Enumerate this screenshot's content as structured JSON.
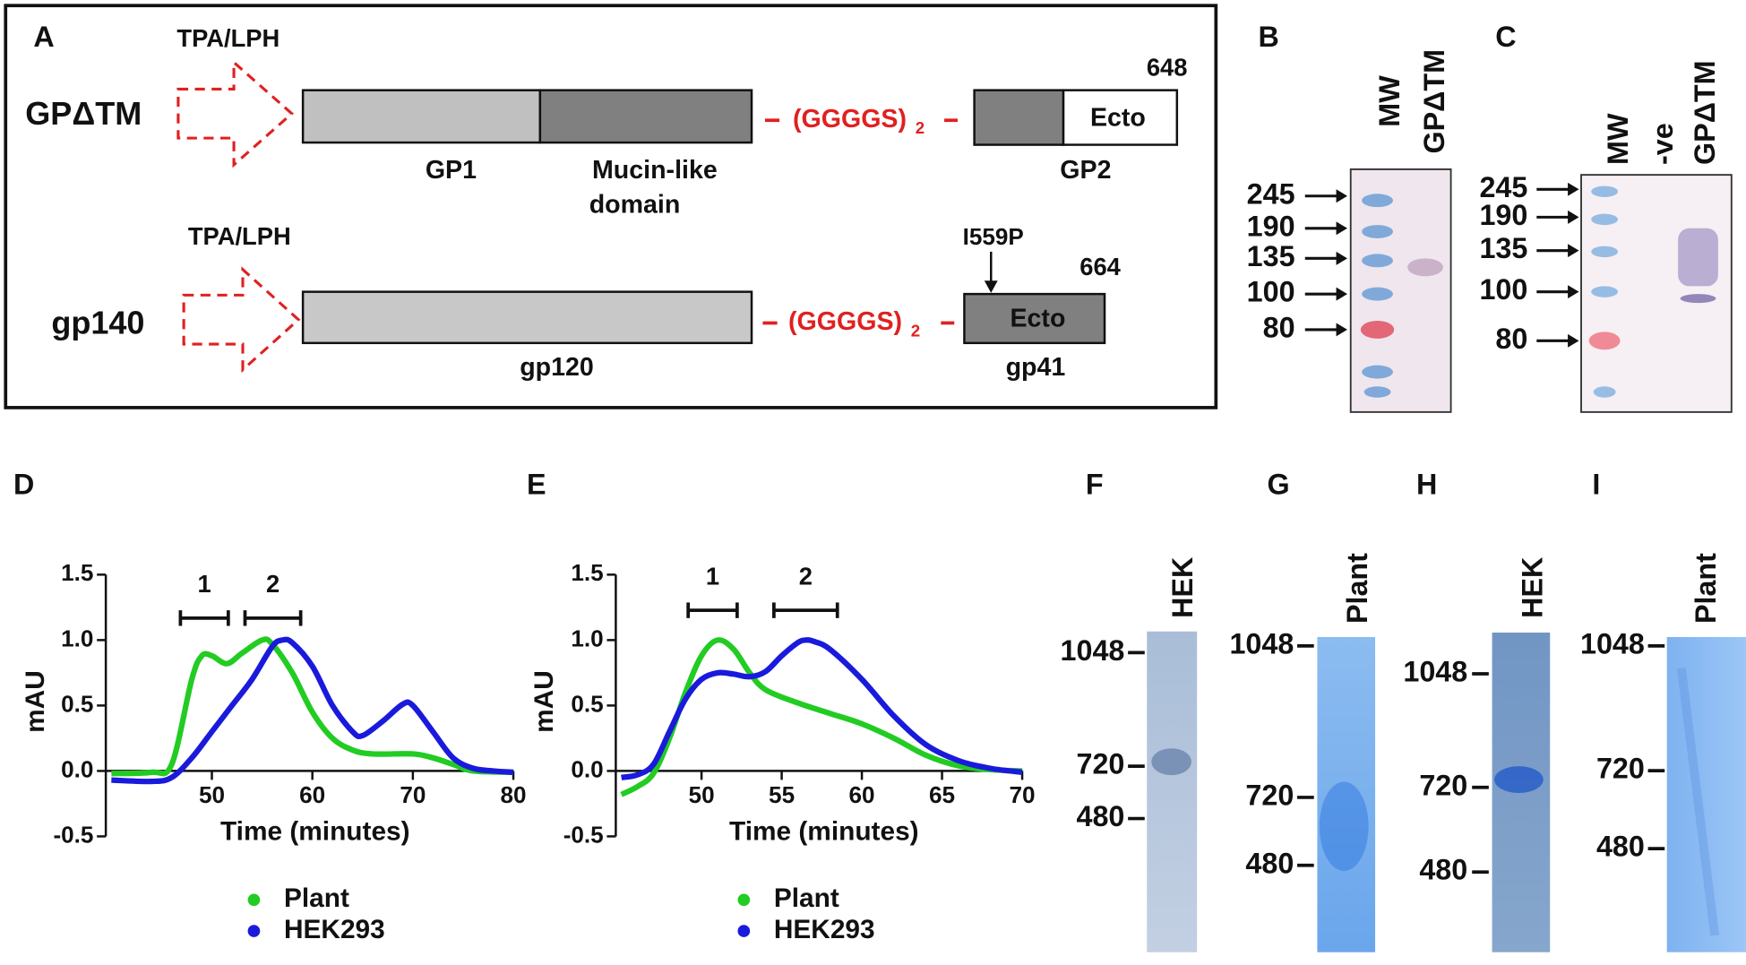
{
  "panel_labels": [
    "A",
    "B",
    "C",
    "D",
    "E",
    "F",
    "G",
    "H",
    "I"
  ],
  "schematic": {
    "gpdtm": {
      "label": "GPΔTM",
      "signal": "TPA/LPH",
      "length": 648,
      "linker": "(GGGGS)",
      "linker_sub": "2",
      "ecto": "Ecto",
      "labels": [
        "GP1",
        "Mucin-like",
        "domain",
        "GP2"
      ]
    },
    "gp140": {
      "label": "gp140",
      "signal": "TPA/LPH",
      "length": 664,
      "mutation": "I559P",
      "linker": "(GGGGS)",
      "linker_sub": "2",
      "ecto": "Ecto",
      "labels": [
        "gp120",
        "gp41"
      ]
    }
  },
  "blots": [
    {
      "lanes": [
        "MW",
        "GPΔTM"
      ],
      "markers": [
        245,
        190,
        135,
        100,
        80
      ]
    },
    {
      "lanes": [
        "MW",
        "-ve",
        "GPΔTM"
      ],
      "markers": [
        245,
        190,
        135,
        100,
        80
      ]
    }
  ],
  "native_gels": [
    {
      "lane": "HEK",
      "markers": [
        1048,
        720,
        480
      ]
    },
    {
      "lane": "Plant",
      "markers": [
        1048,
        720,
        480
      ]
    },
    {
      "lane": "HEK",
      "markers": [
        1048,
        720,
        480
      ]
    },
    {
      "lane": "Plant",
      "markers": [
        1048,
        720,
        480
      ]
    }
  ],
  "chart_data": [
    {
      "type": "line",
      "x_label": "Time (minutes)",
      "y_label": "mAU",
      "annotations": [
        "1",
        "2"
      ],
      "xlim": [
        40,
        80
      ],
      "xticks": [
        50,
        60,
        70,
        80
      ],
      "ylim": [
        -0.5,
        1.5
      ],
      "yticks": [
        -0.5,
        {
          "value": 0,
          "label": "0.0"
        },
        0.5,
        {
          "value": 1,
          "label": "1.0"
        },
        1.5
      ],
      "series": [
        {
          "name": "Plant",
          "color": "#22cc22",
          "x": [
            40,
            44,
            46,
            48,
            49,
            50,
            51.5,
            53,
            55,
            56,
            58,
            60,
            62,
            64,
            66,
            70,
            72,
            74,
            76,
            80
          ],
          "values": [
            -0.02,
            -0.01,
            0.05,
            0.7,
            0.88,
            0.88,
            0.82,
            0.9,
            1.0,
            0.97,
            0.75,
            0.45,
            0.25,
            0.16,
            0.13,
            0.13,
            0.1,
            0.05,
            0.0,
            -0.01
          ]
        },
        {
          "name": "HEK293",
          "color": "#1a1adc",
          "x": [
            40,
            44,
            46,
            48,
            50,
            52,
            54,
            56,
            57,
            58,
            60,
            62,
            64,
            65,
            67,
            69,
            70,
            72,
            74,
            76,
            78,
            80
          ],
          "values": [
            -0.07,
            -0.08,
            -0.05,
            0.1,
            0.3,
            0.5,
            0.7,
            0.95,
            1.0,
            0.98,
            0.8,
            0.5,
            0.3,
            0.27,
            0.38,
            0.51,
            0.5,
            0.3,
            0.1,
            0.02,
            0.0,
            -0.01
          ]
        }
      ]
    },
    {
      "type": "line",
      "x_label": "Time (minutes)",
      "y_label": "mAU",
      "annotations": [
        "1",
        "2"
      ],
      "xlim": [
        45,
        70
      ],
      "xticks": [
        50,
        55,
        60,
        65,
        70
      ],
      "ylim": [
        -0.5,
        1.5
      ],
      "yticks": [
        -0.5,
        {
          "value": 0,
          "label": "0.0"
        },
        0.5,
        {
          "value": 1,
          "label": "1.0"
        },
        1.5
      ],
      "series": [
        {
          "name": "Plant",
          "color": "#22cc22",
          "x": [
            45,
            46,
            47,
            48,
            49,
            50,
            51,
            52,
            53,
            54,
            56,
            58,
            60,
            62,
            64,
            66,
            68,
            70
          ],
          "values": [
            -0.18,
            -0.12,
            -0.02,
            0.25,
            0.6,
            0.88,
            1.0,
            0.93,
            0.75,
            0.62,
            0.52,
            0.44,
            0.36,
            0.25,
            0.12,
            0.04,
            0.01,
            0.0
          ]
        },
        {
          "name": "HEK293",
          "color": "#1a1adc",
          "x": [
            45,
            46,
            47,
            48,
            49,
            50,
            51,
            52,
            53,
            54,
            55,
            56,
            56.5,
            57,
            58,
            60,
            62,
            64,
            66,
            68,
            70
          ],
          "values": [
            -0.05,
            -0.03,
            0.05,
            0.3,
            0.55,
            0.7,
            0.75,
            0.74,
            0.72,
            0.76,
            0.88,
            0.98,
            1.0,
            0.99,
            0.93,
            0.7,
            0.42,
            0.2,
            0.08,
            0.02,
            -0.01
          ]
        }
      ]
    }
  ]
}
